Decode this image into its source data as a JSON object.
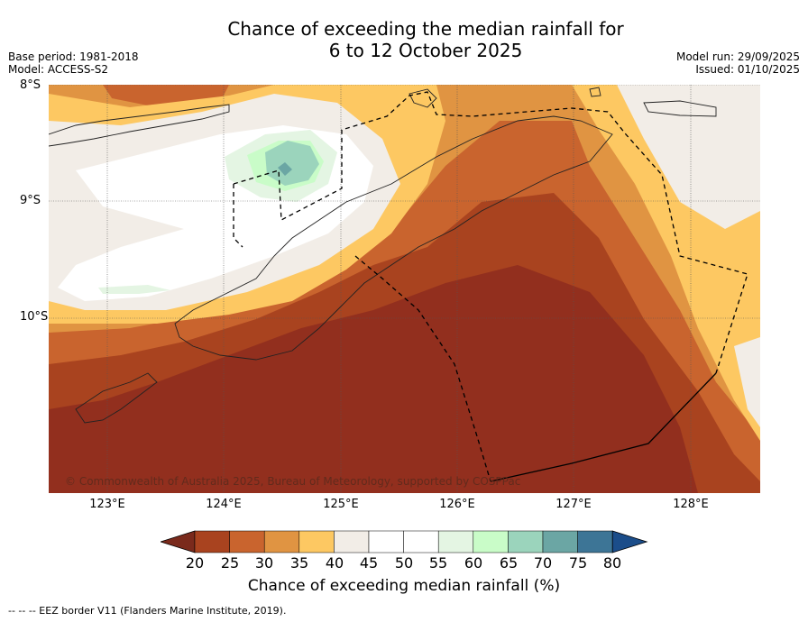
{
  "header": {
    "title_line1": "Chance of exceeding the median rainfall for",
    "title_line2": "6 to 12 October 2025",
    "base_period": "Base period: 1981-2018",
    "model": "Model: ACCESS-S2",
    "model_run": "Model run: 29/09/2025",
    "issued": "Issued: 01/10/2025"
  },
  "map": {
    "lat_labels": [
      "8°S",
      "9°S",
      "10°S"
    ],
    "lon_labels": [
      "123°E",
      "124°E",
      "125°E",
      "126°E",
      "127°E",
      "128°E"
    ],
    "copyright": "© Commonwealth of Australia 2025, Bureau of Meteorology, supported by COSPPac"
  },
  "legend": {
    "ticks": [
      "20",
      "25",
      "30",
      "35",
      "40",
      "45",
      "50",
      "55",
      "60",
      "65",
      "70",
      "75",
      "80"
    ],
    "colors": [
      "#7a2a1c",
      "#a9431f",
      "#c9642e",
      "#e09442",
      "#fdc862",
      "#f2ede7",
      "#ffffff",
      "#ffffff",
      "#e4f5e3",
      "#c9fcc8",
      "#9bd4bc",
      "#6ba6a4",
      "#3d7596",
      "#1b4d8a"
    ],
    "label": "Chance of exceeding median rainfall (%)"
  },
  "footnote": "--  --  -- EEZ border V11 (Flanders Marine Institute, 2019)."
}
